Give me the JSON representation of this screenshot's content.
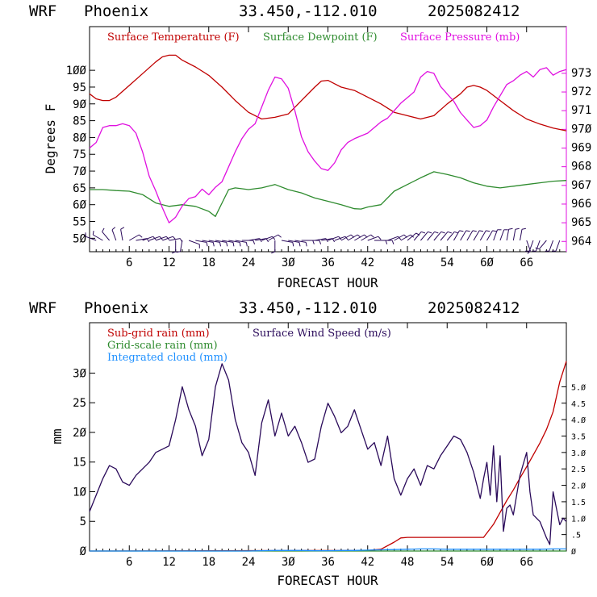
{
  "header": {
    "model": "WRF",
    "location": "Phoenix",
    "coords": "33.450,-112.010",
    "run": "2025082412"
  },
  "colors": {
    "temperature": "#c00000",
    "dewpoint": "#2e8b2e",
    "pressure": "#e010e0",
    "subgrid_rain": "#c00000",
    "gridscale_rain": "#2e8b2e",
    "cloud": "#1e90ff",
    "wind": "#2a0a5a",
    "barb": "#2a0a5a"
  },
  "chart_data": [
    {
      "type": "line",
      "xlabel": "FORECAST HOUR",
      "ylabel": "Degrees F",
      "xlim": [
        0,
        72
      ],
      "ylim": [
        46,
        113
      ],
      "y2lim": [
        963.45,
        975.5
      ],
      "x_ticks": [
        6,
        12,
        18,
        24,
        30,
        36,
        42,
        48,
        54,
        60,
        66
      ],
      "x_tick_labels": [
        "6",
        "12",
        "18",
        "24",
        "3Ø",
        "36",
        "42",
        "48",
        "54",
        "6Ø",
        "66"
      ],
      "y_ticks": [
        50,
        55,
        60,
        65,
        70,
        75,
        80,
        85,
        90,
        95,
        100
      ],
      "y_tick_labels": [
        "5Ø",
        "55",
        "6Ø",
        "65",
        "7Ø",
        "75",
        "8Ø",
        "85",
        "9Ø",
        "95",
        "1ØØ"
      ],
      "y2_ticks": [
        964,
        965,
        966,
        967,
        968,
        969,
        970,
        971,
        972,
        973
      ],
      "y2_tick_labels": [
        "964",
        "965",
        "966",
        "967",
        "968",
        "969",
        "97Ø",
        "971",
        "972",
        "973"
      ],
      "legend_position": "top",
      "series": [
        {
          "name": "Surface Temperature (F)",
          "axis": "left",
          "x": [
            0,
            1,
            2,
            3,
            4,
            6,
            8,
            10,
            11,
            12,
            13,
            14,
            16,
            18,
            20,
            22,
            24,
            26,
            28,
            30,
            32,
            34,
            35,
            36,
            37,
            38,
            40,
            42,
            44,
            46,
            48,
            50,
            52,
            54,
            56,
            57,
            58,
            59,
            60,
            62,
            64,
            66,
            68,
            70,
            72
          ],
          "y": [
            93,
            91.5,
            91,
            91,
            92,
            95.5,
            99,
            102.5,
            104,
            104.5,
            104.5,
            103,
            101,
            98.5,
            95,
            91,
            87.5,
            85.5,
            86,
            87,
            91,
            95,
            96.8,
            97,
            96,
            95,
            94,
            92,
            90,
            87.5,
            86.5,
            85.5,
            86.5,
            90,
            93,
            95,
            95.5,
            95,
            94,
            91,
            88,
            85.5,
            84,
            82.8,
            82
          ]
        },
        {
          "name": "Surface Dewpoint (F)",
          "axis": "left",
          "x": [
            0,
            2,
            4,
            6,
            8,
            10,
            12,
            14,
            16,
            18,
            19,
            20,
            21,
            22,
            24,
            26,
            28,
            30,
            32,
            34,
            36,
            38,
            40,
            41,
            42,
            44,
            46,
            48,
            50,
            52,
            54,
            56,
            58,
            60,
            62,
            64,
            66,
            68,
            70,
            72
          ],
          "y": [
            64.5,
            64.5,
            64.2,
            64,
            63,
            60.5,
            59.5,
            60,
            59.5,
            58,
            56.5,
            60.5,
            64.5,
            65,
            64.5,
            65,
            66,
            64.5,
            63.5,
            62,
            61,
            60,
            58.8,
            58.7,
            59.3,
            60,
            64,
            66,
            68,
            69.8,
            69,
            68,
            66.5,
            65.5,
            65,
            65.5,
            66,
            66.5,
            67,
            67.2
          ]
        },
        {
          "name": "Surface Pressure (mb)",
          "axis": "right",
          "x": [
            0,
            1,
            2,
            3,
            4,
            5,
            6,
            7,
            8,
            9,
            10,
            11,
            12,
            13,
            14,
            15,
            16,
            17,
            18,
            19,
            20,
            21,
            22,
            23,
            24,
            25,
            26,
            27,
            28,
            29,
            30,
            31,
            32,
            33,
            34,
            35,
            36,
            37,
            38,
            39,
            40,
            42,
            44,
            45,
            46,
            47,
            48,
            49,
            50,
            51,
            52,
            53,
            54,
            55,
            56,
            57,
            58,
            59,
            60,
            61,
            62,
            63,
            64,
            65,
            66,
            67,
            68,
            69,
            70,
            71,
            72
          ],
          "y": [
            969,
            969.3,
            970.1,
            970.2,
            970.2,
            970.3,
            970.2,
            969.8,
            968.8,
            967.5,
            966.7,
            965.8,
            965,
            965.3,
            965.9,
            966.3,
            966.4,
            966.8,
            966.5,
            966.9,
            967.2,
            968,
            968.8,
            969.5,
            970,
            970.3,
            971.2,
            972.1,
            972.8,
            972.7,
            972.2,
            971,
            969.6,
            968.8,
            968.3,
            967.9,
            967.8,
            968.2,
            968.9,
            969.3,
            969.5,
            969.8,
            970.4,
            970.6,
            971,
            971.4,
            971.7,
            972,
            972.8,
            973.1,
            973,
            972.3,
            971.9,
            971.5,
            970.9,
            970.5,
            970.1,
            970.2,
            970.5,
            971.2,
            971.8,
            972.4,
            972.6,
            972.9,
            973.1,
            972.8,
            973.2,
            973.3,
            972.9,
            973.1,
            973.2
          ]
        }
      ],
      "wind_barbs": {
        "x": [
          1,
          2,
          3,
          4,
          5,
          6,
          7,
          8,
          9,
          10,
          11,
          12,
          13,
          14,
          15,
          16,
          17,
          18,
          19,
          20,
          21,
          22,
          23,
          24,
          25,
          26,
          27,
          28,
          29,
          30,
          31,
          32,
          33,
          34,
          35,
          36,
          37,
          38,
          39,
          40,
          41,
          42,
          43,
          44,
          45,
          46,
          47,
          48,
          49,
          50,
          51,
          52,
          53,
          54,
          55,
          56,
          57,
          58,
          59,
          60,
          61,
          62,
          63,
          64,
          65,
          66,
          67,
          68,
          69,
          70,
          71
        ],
        "direction_deg": [
          290,
          300,
          320,
          340,
          350,
          60,
          80,
          70,
          70,
          70,
          70,
          80,
          180,
          190,
          110,
          100,
          100,
          100,
          100,
          100,
          100,
          100,
          90,
          80,
          80,
          70,
          60,
          180,
          100,
          100,
          100,
          90,
          90,
          80,
          80,
          70,
          70,
          60,
          60,
          60,
          60,
          70,
          90,
          90,
          70,
          60,
          60,
          50,
          40,
          40,
          40,
          40,
          40,
          40,
          30,
          30,
          30,
          30,
          30,
          30,
          20,
          20,
          10,
          10,
          10,
          160,
          200,
          200,
          220,
          200,
          200
        ]
      }
    },
    {
      "type": "line",
      "xlabel": "FORECAST HOUR",
      "ylabel": "mm",
      "xlim": [
        0,
        72
      ],
      "ylim": [
        0,
        38.5
      ],
      "y2lim": [
        0,
        6.95
      ],
      "x_ticks": [
        6,
        12,
        18,
        24,
        30,
        36,
        42,
        48,
        54,
        60,
        66
      ],
      "x_tick_labels": [
        "6",
        "12",
        "18",
        "24",
        "3Ø",
        "36",
        "42",
        "48",
        "54",
        "6Ø",
        "66"
      ],
      "y_ticks": [
        0,
        5,
        10,
        15,
        20,
        25,
        30
      ],
      "y_tick_labels": [
        "Ø",
        "5",
        "1Ø",
        "15",
        "2Ø",
        "25",
        "3Ø"
      ],
      "y2_ticks": [
        0,
        0.5,
        1.0,
        1.5,
        2.0,
        2.5,
        3.0,
        3.5,
        4.0,
        4.5,
        5.0
      ],
      "y2_tick_labels": [
        "Ø",
        ".5",
        "1.Ø",
        "1.5",
        "2.Ø",
        "2.5",
        "3.Ø",
        "3.5",
        "4.Ø",
        "4.5",
        "5.Ø"
      ],
      "legend_position": "top-left",
      "series": [
        {
          "name": "Sub-grid rain (mm)",
          "axis": "left",
          "x": [
            0,
            42,
            44,
            46,
            47,
            48,
            50,
            52,
            54,
            56,
            58,
            59.5,
            61,
            62,
            63,
            64,
            65,
            66,
            67,
            68,
            69,
            70,
            71,
            72
          ],
          "y": [
            0,
            0.1,
            0.3,
            1.5,
            2.2,
            2.3,
            2.3,
            2.3,
            2.3,
            2.3,
            2.3,
            2.3,
            4.5,
            6.5,
            8.5,
            10.3,
            12.3,
            14.2,
            16.2,
            18.2,
            20.5,
            23.5,
            28.5,
            32
          ]
        },
        {
          "name": "Grid-scale rain (mm)",
          "axis": "left",
          "x": [
            0,
            72
          ],
          "y": [
            0,
            0
          ]
        },
        {
          "name": "Integrated cloud (mm)",
          "axis": "left",
          "x": [
            0,
            24,
            26,
            28,
            30,
            32,
            34,
            36,
            38,
            40,
            42,
            44,
            46,
            48,
            50,
            52,
            54,
            56,
            58,
            60,
            62,
            64,
            66,
            68,
            70,
            72
          ],
          "y": [
            0,
            0,
            0.05,
            0.1,
            0.1,
            0.1,
            0.05,
            0.05,
            0.1,
            0.1,
            0.15,
            0.2,
            0.25,
            0.3,
            0.35,
            0.35,
            0.3,
            0.3,
            0.3,
            0.3,
            0.3,
            0.3,
            0.3,
            0.3,
            0.35,
            0.35
          ]
        },
        {
          "name": "Surface Wind Speed (m/s)",
          "axis": "right",
          "x": [
            0,
            1,
            2,
            3,
            4,
            5,
            6,
            7,
            8,
            9,
            10,
            11,
            12,
            13,
            14,
            15,
            16,
            17,
            18,
            19,
            20,
            21,
            22,
            23,
            24,
            25,
            26,
            27,
            28,
            29,
            30,
            31,
            32,
            33,
            34,
            35,
            36,
            37,
            38,
            39,
            40,
            41,
            42,
            43,
            44,
            45,
            46,
            47,
            48,
            49,
            50,
            51,
            52,
            53,
            54,
            55,
            56,
            57,
            58,
            59,
            59.5,
            60,
            60.5,
            61,
            61.5,
            62,
            62.5,
            63,
            63.5,
            64,
            65,
            66,
            66.5,
            67,
            68,
            69,
            69.5,
            70,
            70.5,
            71,
            71.5,
            72
          ],
          "y": [
            1.2,
            1.7,
            2.2,
            2.6,
            2.5,
            2.1,
            2.0,
            2.3,
            2.5,
            2.7,
            3.0,
            3.1,
            3.2,
            4.0,
            5.0,
            4.3,
            3.8,
            2.9,
            3.4,
            5.0,
            5.7,
            5.2,
            4.0,
            3.3,
            3.0,
            2.3,
            3.9,
            4.6,
            3.5,
            4.2,
            3.5,
            3.8,
            3.3,
            2.7,
            2.8,
            3.8,
            4.5,
            4.1,
            3.6,
            3.8,
            4.3,
            3.7,
            3.1,
            3.3,
            2.6,
            3.5,
            2.2,
            1.7,
            2.2,
            2.5,
            2.0,
            2.6,
            2.5,
            2.9,
            3.2,
            3.5,
            3.4,
            3.0,
            2.4,
            1.6,
            2.2,
            2.7,
            1.7,
            3.2,
            1.5,
            2.9,
            0.6,
            1.3,
            1.4,
            1.1,
            2.3,
            3.0,
            1.8,
            1.1,
            0.9,
            0.4,
            0.2,
            1.8,
            1.3,
            0.8,
            1.0,
            0.9
          ]
        }
      ]
    }
  ]
}
